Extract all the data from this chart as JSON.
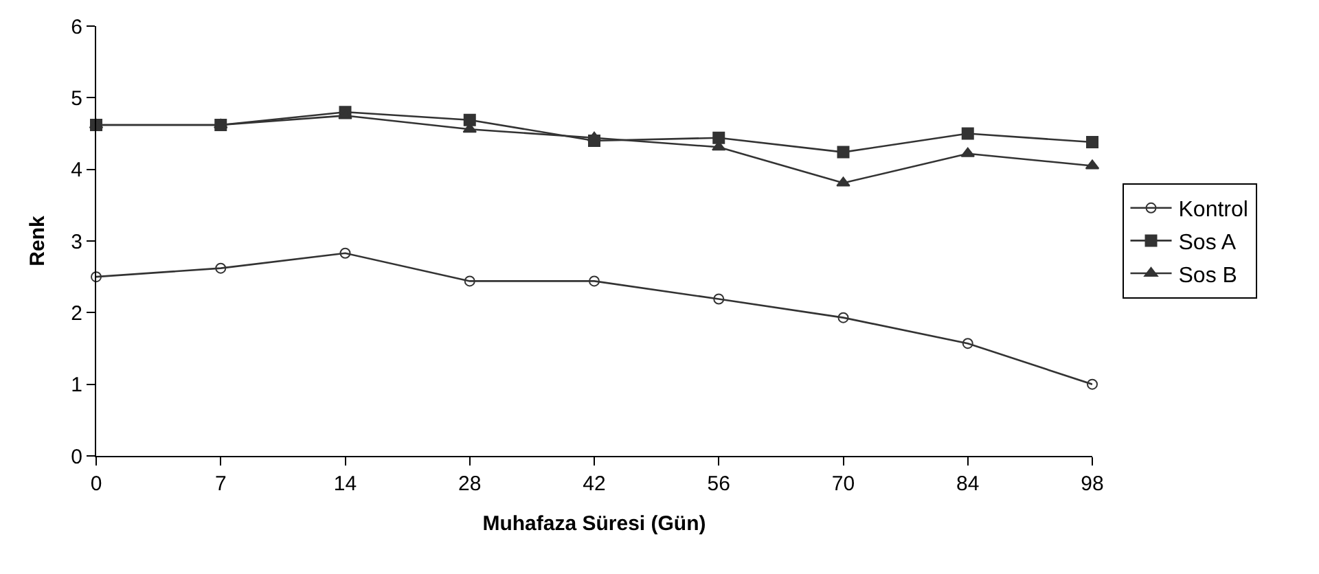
{
  "chart_data": {
    "type": "line",
    "xlabel": "Muhafaza Süresi (Gün)",
    "ylabel": "Renk",
    "categories": [
      "0",
      "7",
      "14",
      "28",
      "42",
      "56",
      "70",
      "84",
      "98"
    ],
    "series": [
      {
        "name": "Kontrol",
        "color": "#333333",
        "marker": "circle",
        "values": [
          2.5,
          2.62,
          2.83,
          2.44,
          2.44,
          2.19,
          1.93,
          1.57,
          1.0
        ]
      },
      {
        "name": "Sos A",
        "color": "#333333",
        "marker": "square",
        "values": [
          4.62,
          4.62,
          4.8,
          4.69,
          4.4,
          4.44,
          4.24,
          4.5,
          4.38
        ]
      },
      {
        "name": "Sos B",
        "color": "#333333",
        "marker": "triangle",
        "values": [
          4.62,
          4.62,
          4.75,
          4.56,
          4.44,
          4.31,
          3.81,
          4.22,
          4.05
        ]
      }
    ],
    "ylim": [
      0,
      6
    ],
    "yticks": [
      0,
      1,
      2,
      3,
      4,
      5,
      6
    ],
    "legend": "right",
    "line_style": "solid"
  }
}
